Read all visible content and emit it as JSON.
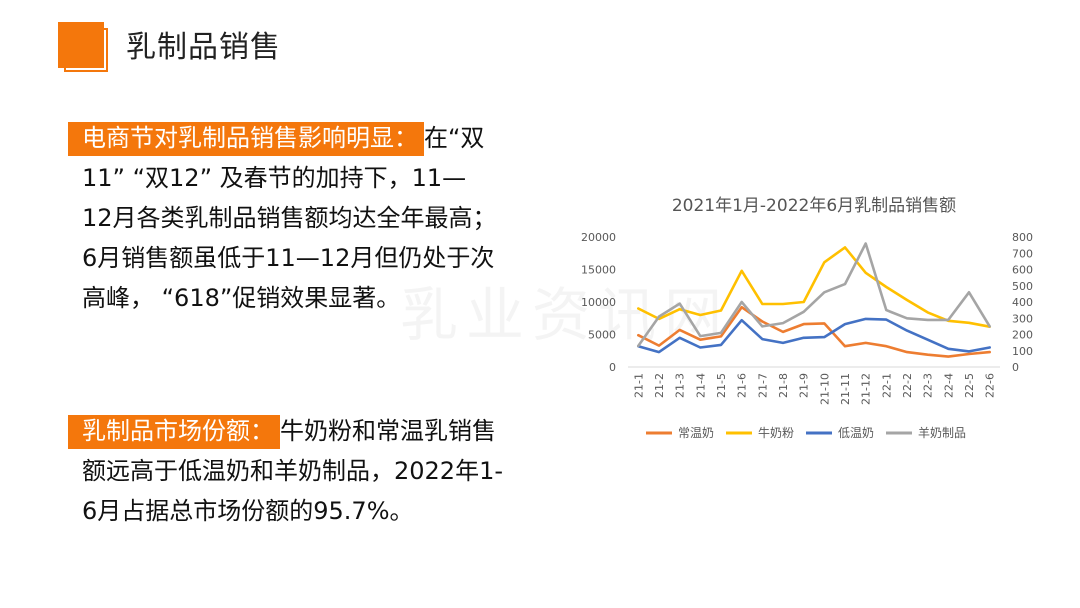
{
  "header": {
    "title": "乳制品销售"
  },
  "section1": {
    "highlight": "电商节对乳制品销售影响明显：",
    "lines": [
      "在“双",
      "11” “双12” 及春节的加持下，11—",
      "12月各类乳制品销售额均达全年最高；",
      "6月销售额虽低于11—12月但仍处于次",
      "高峰， “618”促销效果显著。"
    ]
  },
  "section2": {
    "highlight": "乳制品市场份额：",
    "lines": [
      "牛奶粉和常温乳销售",
      "额远高于低温奶和羊奶制品，2022年1-",
      "6月占据总市场份额的95.7%。"
    ]
  },
  "watermark": "乳业资讯网",
  "chart_data": {
    "type": "line",
    "title": "2021年1月-2022年6月乳制品销售额",
    "categories": [
      "21-1",
      "21-2",
      "21-3",
      "21-4",
      "21-5",
      "21-6",
      "21-7",
      "21-8",
      "21-9",
      "21-10",
      "21-11",
      "21-12",
      "22-1",
      "22-2",
      "22-3",
      "22-4",
      "22-5",
      "22-6"
    ],
    "y_left": {
      "min": 0,
      "max": 20000,
      "ticks": [
        "0",
        "5000",
        "10000",
        "15000",
        "20000"
      ]
    },
    "y_right": {
      "min": 0,
      "max": 800,
      "ticks": [
        "0",
        "100",
        "200",
        "300",
        "400",
        "500",
        "600",
        "700",
        "800"
      ]
    },
    "series": [
      {
        "name": "常温奶",
        "axis": "left",
        "color": "#ed7d31",
        "values": [
          4900,
          3300,
          5700,
          4200,
          4700,
          9200,
          7000,
          5400,
          6600,
          6700,
          3200,
          3700,
          3200,
          2300,
          1900,
          1600,
          2000,
          2300
        ]
      },
      {
        "name": "牛奶粉",
        "axis": "left",
        "color": "#ffc000",
        "values": [
          9000,
          7400,
          8900,
          8000,
          8700,
          14800,
          9700,
          9700,
          10000,
          16100,
          18400,
          14500,
          12300,
          10300,
          8400,
          7100,
          6800,
          6200
        ]
      },
      {
        "name": "低温奶",
        "axis": "left",
        "color": "#4472c4",
        "values": [
          3200,
          2300,
          4500,
          3000,
          3400,
          7200,
          4300,
          3700,
          4500,
          4600,
          6600,
          7400,
          7300,
          5600,
          4200,
          2800,
          2400,
          3000
        ]
      },
      {
        "name": "羊奶制品",
        "axis": "right",
        "color": "#a5a5a5",
        "values": [
          130,
          310,
          390,
          190,
          210,
          400,
          250,
          270,
          340,
          460,
          510,
          760,
          350,
          300,
          290,
          290,
          460,
          250
        ]
      }
    ],
    "legend_position": "bottom",
    "grid": false
  }
}
